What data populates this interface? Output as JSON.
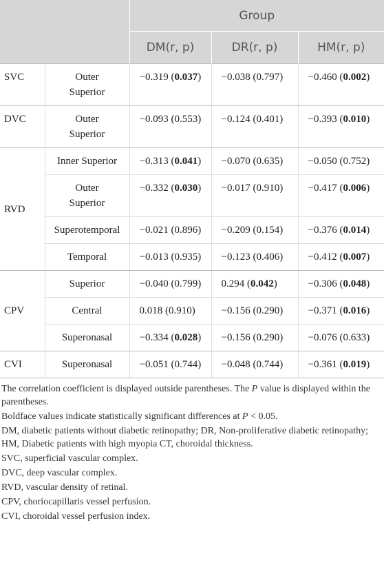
{
  "table": {
    "group_header": "Group",
    "columns": [
      "DM(r, p)",
      "DR(r, p)",
      "HM(r, p)"
    ],
    "groups": [
      {
        "name": "SVC",
        "rows": [
          {
            "label": "Outer Superior",
            "cells": [
              [
                "−0.319 (",
                {
                  "bold": "0.037"
                },
                ")"
              ],
              [
                "−0.038 (0.797)"
              ],
              [
                "−0.460 (",
                {
                  "bold": "0.002"
                },
                ")"
              ]
            ]
          }
        ]
      },
      {
        "name": "DVC",
        "rows": [
          {
            "label": "Outer Superior",
            "cells": [
              [
                "−0.093 (0.553)"
              ],
              [
                "−0.124 (0.401)"
              ],
              [
                "−0.393 (",
                {
                  "bold": "0.010"
                },
                ")"
              ]
            ]
          }
        ]
      },
      {
        "name": "RVD",
        "rows": [
          {
            "label": "Inner Superior",
            "cells": [
              [
                "−0.313 (",
                {
                  "bold": "0.041"
                },
                ")"
              ],
              [
                "−0.070 (0.635)"
              ],
              [
                "−0.050 (0.752)"
              ]
            ]
          },
          {
            "label": "Outer Superior",
            "cells": [
              [
                "−0.332 (",
                {
                  "bold": "0.030"
                },
                ")"
              ],
              [
                "−0.017 (0.910)"
              ],
              [
                "−0.417 (",
                {
                  "bold": "0.006"
                },
                ")"
              ]
            ]
          },
          {
            "label": "Superotemporal",
            "cells": [
              [
                "−0.021 (0.896)"
              ],
              [
                "−0.209 (0.154)"
              ],
              [
                "−0.376 (",
                {
                  "bold": "0.014"
                },
                ")"
              ]
            ]
          },
          {
            "label": "Temporal",
            "cells": [
              [
                "−0.013 (0.935)"
              ],
              [
                "−0.123 (0.406)"
              ],
              [
                "−0.412 (",
                {
                  "bold": "0.007"
                },
                ")"
              ]
            ]
          }
        ]
      },
      {
        "name": "CPV",
        "rows": [
          {
            "label": "Superior",
            "cells": [
              [
                "−0.040 (0.799)"
              ],
              [
                "0.294 (",
                {
                  "bold": "0.042"
                },
                ")"
              ],
              [
                "−0.306 (",
                {
                  "bold": "0.048"
                },
                ")"
              ]
            ]
          },
          {
            "label": "Central",
            "cells": [
              [
                "0.018 (0.910)"
              ],
              [
                "−0.156 (0.290)"
              ],
              [
                "−0.371 (",
                {
                  "bold": "0.016"
                },
                ")"
              ]
            ]
          },
          {
            "label": "Superonasal",
            "cells": [
              [
                "−0.334 (",
                {
                  "bold": "0.028"
                },
                ")"
              ],
              [
                "−0.156 (0.290)"
              ],
              [
                "−0.076 (0.633)"
              ]
            ]
          }
        ]
      },
      {
        "name": "CVI",
        "rows": [
          {
            "label": "Superonasal",
            "cells": [
              [
                "−0.051 (0.744)"
              ],
              [
                "−0.048 (0.744)"
              ],
              [
                "−0.361 (",
                {
                  "bold": "0.019"
                },
                ")"
              ]
            ]
          }
        ]
      }
    ],
    "notes": [
      [
        "The correlation coefficient is displayed outside parentheses. The ",
        {
          "italic": "P"
        },
        " value is displayed within the parentheses."
      ],
      [
        "Boldface values indicate statistically significant differences at ",
        {
          "italic": "P"
        },
        " < 0.05."
      ],
      [
        "DM, diabetic patients without diabetic retinopathy; DR, Non-proliferative diabetic retinopathy; HM, Diabetic patients with high myopia CT, choroidal thickness."
      ],
      [
        "SVC, superficial vascular complex."
      ],
      [
        "DVC, deep vascular complex."
      ],
      [
        "RVD, vascular density of retinal."
      ],
      [
        "CPV, choriocapillaris vessel perfusion."
      ],
      [
        "CVI, choroidal vessel perfusion index."
      ]
    ]
  }
}
